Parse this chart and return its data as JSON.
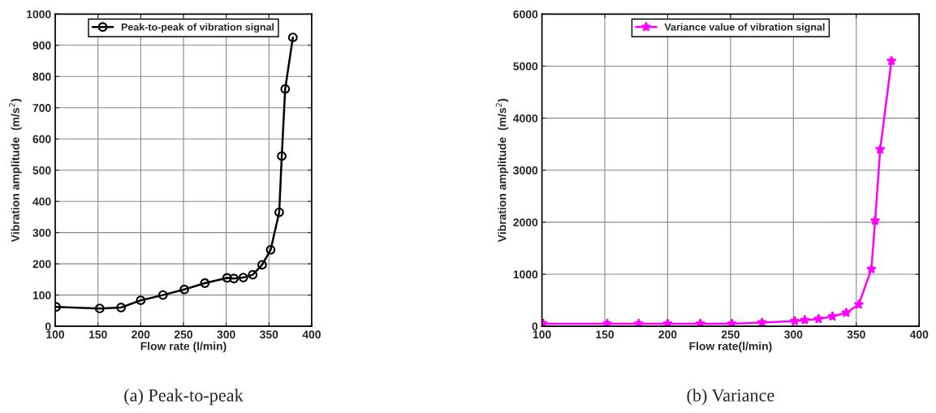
{
  "chart_data": [
    {
      "type": "line",
      "title": "(a) Peak-to-peak",
      "xlabel": "Flow rate (l/min)",
      "ylabel": "Vibration amplitude  (m/s$^{2}$)",
      "x": [
        101,
        152,
        177,
        200,
        226,
        251,
        275,
        301,
        309,
        320,
        331,
        342,
        352,
        362,
        365,
        369,
        378
      ],
      "series": [
        {
          "name": "Peak-to-peak of vibration signal",
          "color": "#000000",
          "values": [
            62,
            57,
            60,
            83,
            100,
            118,
            138,
            155,
            153,
            156,
            165,
            197,
            245,
            365,
            545,
            760,
            925
          ]
        }
      ],
      "xlim": [
        100,
        400
      ],
      "xticks": [
        100,
        150,
        200,
        250,
        300,
        350,
        400
      ],
      "ylim": [
        0,
        1000
      ],
      "yticks": [
        0,
        100,
        200,
        300,
        400,
        500,
        600,
        700,
        800,
        900,
        1000
      ],
      "grid": true,
      "legend": "top",
      "marker": "circle",
      "line_style": "solid"
    },
    {
      "type": "line",
      "title": "(b) Variance",
      "xlabel": "Flow rate(l/min)",
      "ylabel": "Vibration amplitude  (m/s$^{2}$)",
      "x": [
        101,
        152,
        177,
        200,
        226,
        251,
        275,
        301,
        309,
        320,
        331,
        342,
        352,
        362,
        365,
        369,
        378
      ],
      "series": [
        {
          "name": "Variance value of vibration signal",
          "color": "#ff00ff",
          "values": [
            50,
            50,
            50,
            50,
            50,
            50,
            70,
            100,
            120,
            140,
            190,
            260,
            420,
            1100,
            2030,
            3400,
            5100
          ]
        }
      ],
      "xlim": [
        100,
        400
      ],
      "xticks": [
        100,
        150,
        200,
        250,
        300,
        350,
        400
      ],
      "ylim": [
        0,
        6000
      ],
      "yticks": [
        0,
        1000,
        2000,
        3000,
        4000,
        5000,
        6000
      ],
      "grid": true,
      "legend": "top",
      "marker": "star",
      "line_style": "solid"
    }
  ]
}
